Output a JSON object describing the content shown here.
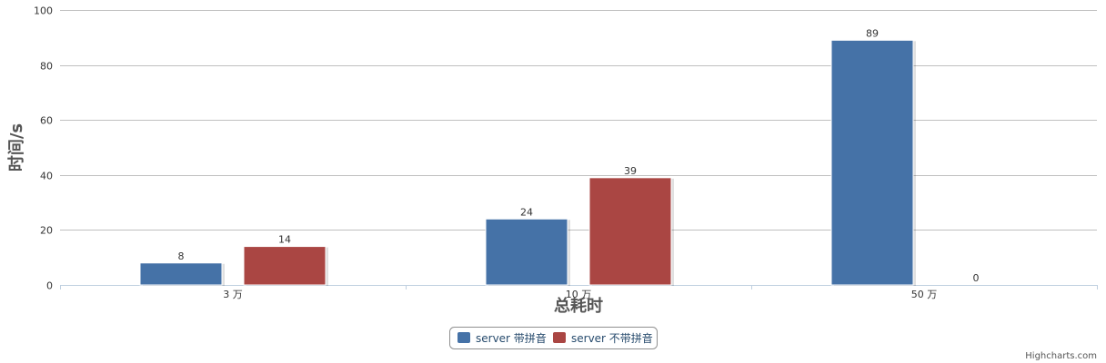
{
  "chart_data": {
    "type": "bar",
    "title": "",
    "xlabel": "总耗时",
    "ylabel": "时间/s",
    "categories": [
      "3 万",
      "10 万",
      "50 万"
    ],
    "series": [
      {
        "name": "server 带拼音",
        "values": [
          8,
          24,
          89
        ],
        "color": "#4572a7"
      },
      {
        "name": "server 不带拼音",
        "values": [
          14,
          39,
          0
        ],
        "color": "#aa4643"
      }
    ],
    "ylim": [
      0,
      100
    ],
    "yticks": [
      0,
      20,
      40,
      60,
      80,
      100
    ],
    "grid": true,
    "legend_position": "bottom-center",
    "data_labels": true
  },
  "credits": {
    "text": "Highcharts.com"
  }
}
